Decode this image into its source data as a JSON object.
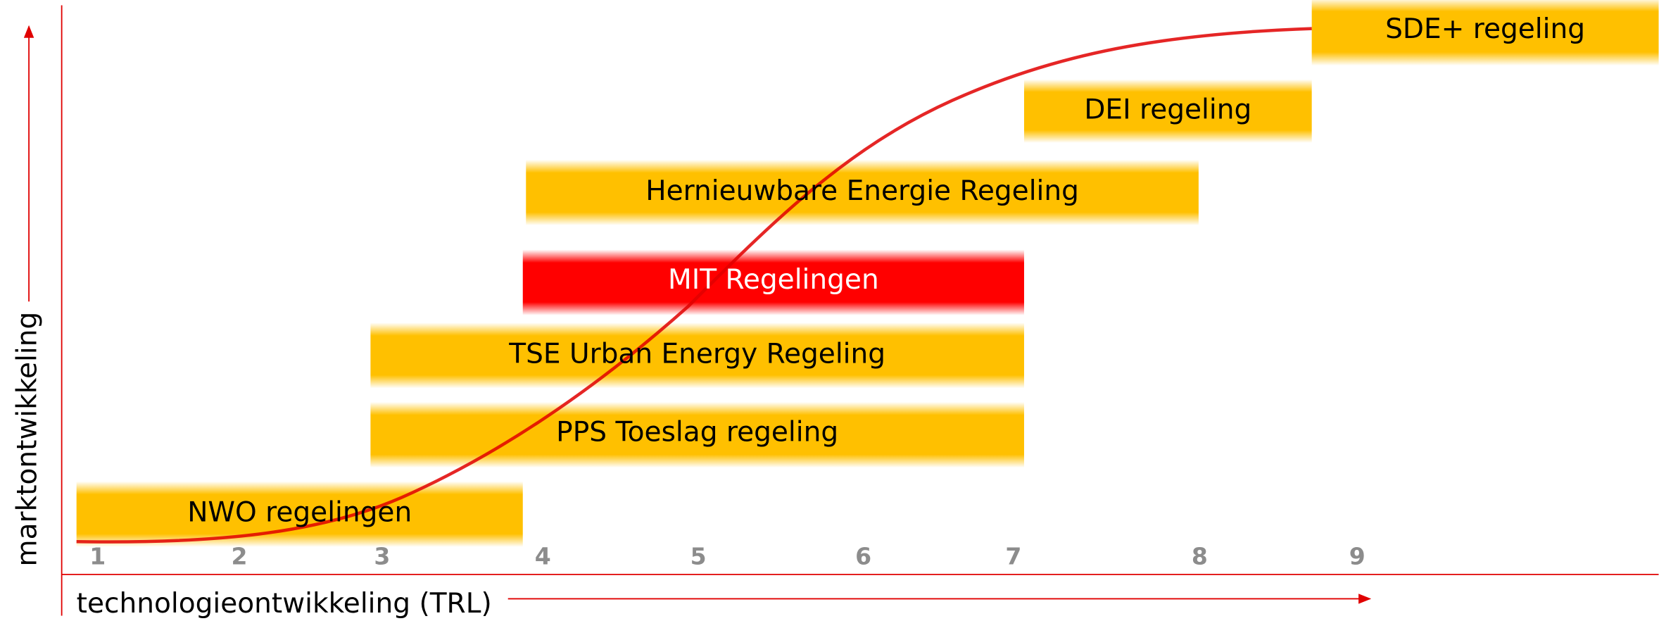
{
  "axes": {
    "y_label": "marktontwikkeling",
    "x_label": "technologieontwikkeling (TRL)"
  },
  "trl_levels": [
    "1",
    "2",
    "3",
    "4",
    "5",
    "6",
    "7",
    "8",
    "9"
  ],
  "schemes": [
    {
      "label": "NWO regelingen"
    },
    {
      "label": "PPS Toeslag regeling"
    },
    {
      "label": "TSE Urban Energy Regeling"
    },
    {
      "label": "MIT Regelingen"
    },
    {
      "label": "Hernieuwbare Energie Regeling"
    },
    {
      "label": "DEI regeling"
    },
    {
      "label": "SDE+ regeling"
    }
  ]
}
